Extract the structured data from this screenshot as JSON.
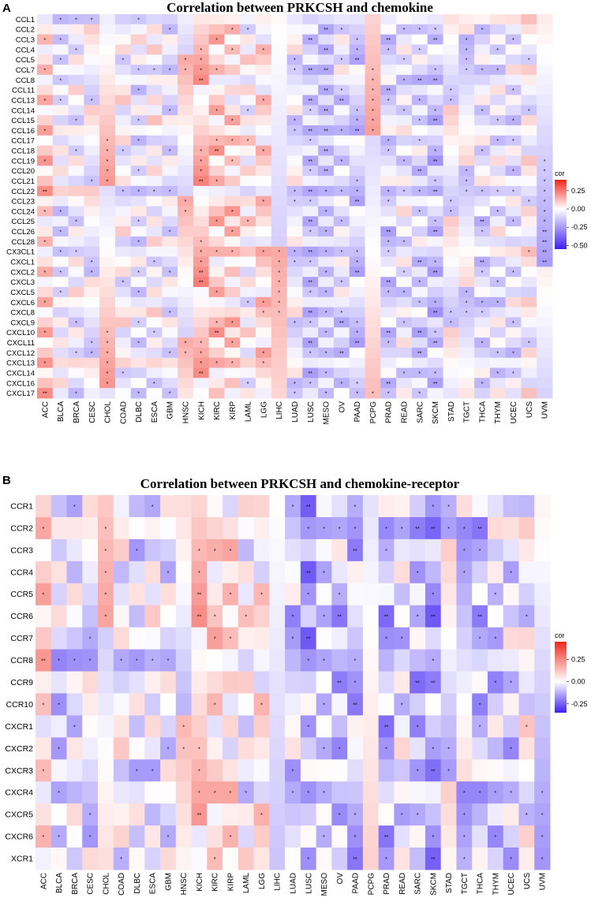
{
  "chart_data": [
    {
      "panel": "A",
      "title": "Correlation between PRKCSH and chemokine",
      "type": "heatmap",
      "legend": {
        "title": "cor",
        "ticks": [
          0.25,
          0.0,
          -0.25,
          -0.5
        ],
        "tick_labels": [
          "0.25",
          "0.00",
          "-0.25",
          "-0.50"
        ],
        "range": [
          -0.55,
          0.4
        ],
        "colors": {
          "low": "#3d1ff2",
          "mid": "#ffffff",
          "high": "#f2261b"
        }
      },
      "columns": [
        "ACC",
        "BLCA",
        "BRCA",
        "CESC",
        "CHOL",
        "COAD",
        "DLBC",
        "ESCA",
        "GBM",
        "HNSC",
        "KICH",
        "KIRC",
        "KIRP",
        "LAML",
        "LGG",
        "LIHC",
        "LUAD",
        "LUSC",
        "MESO",
        "OV",
        "PAAD",
        "PCPG",
        "PRAD",
        "READ",
        "SARC",
        "SKCM",
        "STAD",
        "TGCT",
        "THCA",
        "THYM",
        "UCEC",
        "UCS",
        "UVM"
      ],
      "rows": [
        "CCL1",
        "CCL2",
        "CCL3",
        "CCL4",
        "CCL5",
        "CCL7",
        "CCL8",
        "CCL11",
        "CCL13",
        "CCL14",
        "CCL15",
        "CCL16",
        "CCL17",
        "CCL18",
        "CCL19",
        "CCL20",
        "CCL21",
        "CCL22",
        "CCL23",
        "CCL24",
        "CCL25",
        "CCL26",
        "CCL28",
        "CX3CL1",
        "CXCL1",
        "CXCL2",
        "CXCL3",
        "CXCL5",
        "CXCL6",
        "CXCL8",
        "CXCL9",
        "CXCL10",
        "CXCL11",
        "CXCL12",
        "CXCL13",
        "CXCL14",
        "CXCL16",
        "CXCL17"
      ]
    },
    {
      "panel": "B",
      "title": "Correlation between PRKCSH and chemokine-receptor",
      "type": "heatmap",
      "legend": {
        "title": "cor",
        "ticks": [
          0.25,
          0.0,
          -0.25
        ],
        "tick_labels": [
          "0.25",
          "0.00",
          "-0.25"
        ],
        "range": [
          -0.35,
          0.45
        ],
        "colors": {
          "low": "#3d1ff2",
          "mid": "#ffffff",
          "high": "#f2261b"
        }
      },
      "columns": [
        "ACC",
        "BLCA",
        "BRCA",
        "CESC",
        "CHOL",
        "COAD",
        "DLBC",
        "ESCA",
        "GBM",
        "HNSC",
        "KICH",
        "KIRC",
        "KIRP",
        "LAML",
        "LGG",
        "LIHC",
        "LUAD",
        "LUSC",
        "MESO",
        "OV",
        "PAAD",
        "PCPG",
        "PRAD",
        "READ",
        "SARC",
        "SKCM",
        "STAD",
        "TGCT",
        "THCA",
        "THYM",
        "UCEC",
        "UCS",
        "UVM"
      ],
      "rows": [
        "CCR1",
        "CCR2",
        "CCR3",
        "CCR4",
        "CCR5",
        "CCR6",
        "CCR7",
        "CCR8",
        "CCR9",
        "CCR10",
        "CXCR1",
        "CXCR2",
        "CXCR3",
        "CXCR4",
        "CXCR5",
        "CXCR6",
        "XCR1"
      ]
    }
  ]
}
